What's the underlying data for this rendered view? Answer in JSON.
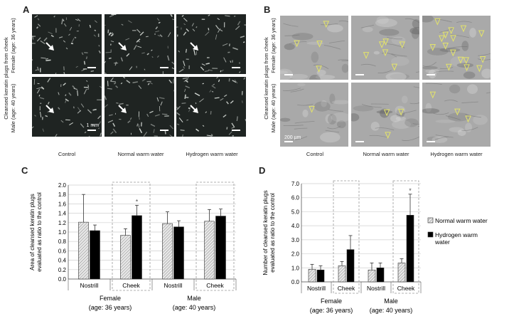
{
  "figure": {
    "panel_a": {
      "letter": "A",
      "row_title": "Cleansed keratin plugs from cheek",
      "rows": [
        "Female (age: 36 years)",
        "Male (age: 40 years)"
      ],
      "conditions": [
        "Control",
        "Normal warm water",
        "Hydrogen warm water"
      ],
      "scale_bar": "1 mm"
    },
    "panel_b": {
      "letter": "B",
      "row_title": "Cleansed keratin plugs from cheek",
      "rows": [
        "Female (age: 36 years)",
        "Male (age: 40 years)"
      ],
      "conditions": [
        "Control",
        "Normal warm water",
        "Hydrogen warm water"
      ],
      "scale_bar": "200 µm"
    },
    "panel_c": {
      "letter": "C"
    },
    "panel_d": {
      "letter": "D"
    },
    "legend": {
      "normal": "Normal warm water",
      "hydrogen": "Hydrogen warm water"
    },
    "colors": {
      "normal_fill": "#cfcfcf",
      "hydrogen_fill": "#000000",
      "micro_bg": "#1f2422",
      "sem_bg": "#a9a9a9",
      "marker": "#e3e36a"
    }
  },
  "chart_data": [
    {
      "type": "bar",
      "panel": "C",
      "ylabel": "Area of cleansed keratin plugs evaluated as ratio to the control",
      "ylim": [
        0,
        2.0
      ],
      "yticks": [
        "0.0",
        "0.2",
        "0.4",
        "0.6",
        "0.8",
        "1.0",
        "1.2",
        "1.4",
        "1.6",
        "1.8",
        "2.0"
      ],
      "categories": [
        "Nostrill",
        "Cheek",
        "Nostrill",
        "Cheek"
      ],
      "groups": [
        {
          "line1": "Female",
          "line2": "(age: 36 years)"
        },
        {
          "line1": "Male",
          "line2": "(age: 40 years)"
        }
      ],
      "highlighted": [
        false,
        true,
        false,
        true
      ],
      "significance": [
        "",
        "*",
        "",
        ""
      ],
      "series": [
        {
          "name": "Normal warm water",
          "values": [
            1.21,
            0.93,
            1.18,
            1.23
          ],
          "errors": [
            0.59,
            0.14,
            0.25,
            0.25
          ]
        },
        {
          "name": "Hydrogen warm water",
          "values": [
            1.03,
            1.35,
            1.11,
            1.34
          ],
          "errors": [
            0.12,
            0.22,
            0.13,
            0.15
          ]
        }
      ]
    },
    {
      "type": "bar",
      "panel": "D",
      "ylabel": "Number of cleansed keratin plugs evaluated as ratio to the control",
      "ylim": [
        0,
        7.0
      ],
      "yticks": [
        "0.0",
        "1.0",
        "2.0",
        "3.0",
        "4.0",
        "5.0",
        "6.0",
        "7.0"
      ],
      "categories": [
        "Nostrill",
        "Cheek",
        "Nostrill",
        "Cheek"
      ],
      "groups": [
        {
          "line1": "Female",
          "line2": "(age: 36 years)"
        },
        {
          "line1": "Male",
          "line2": "(age: 40 years)"
        }
      ],
      "highlighted": [
        false,
        true,
        false,
        true
      ],
      "significance": [
        "",
        "",
        "",
        "*"
      ],
      "series": [
        {
          "name": "Normal warm water",
          "values": [
            0.9,
            1.15,
            0.85,
            1.35
          ],
          "errors": [
            0.35,
            0.3,
            0.5,
            0.3
          ]
        },
        {
          "name": "Hydrogen warm water",
          "values": [
            0.85,
            2.3,
            1.0,
            4.75
          ],
          "errors": [
            0.3,
            1.0,
            0.35,
            1.5
          ]
        }
      ]
    }
  ]
}
